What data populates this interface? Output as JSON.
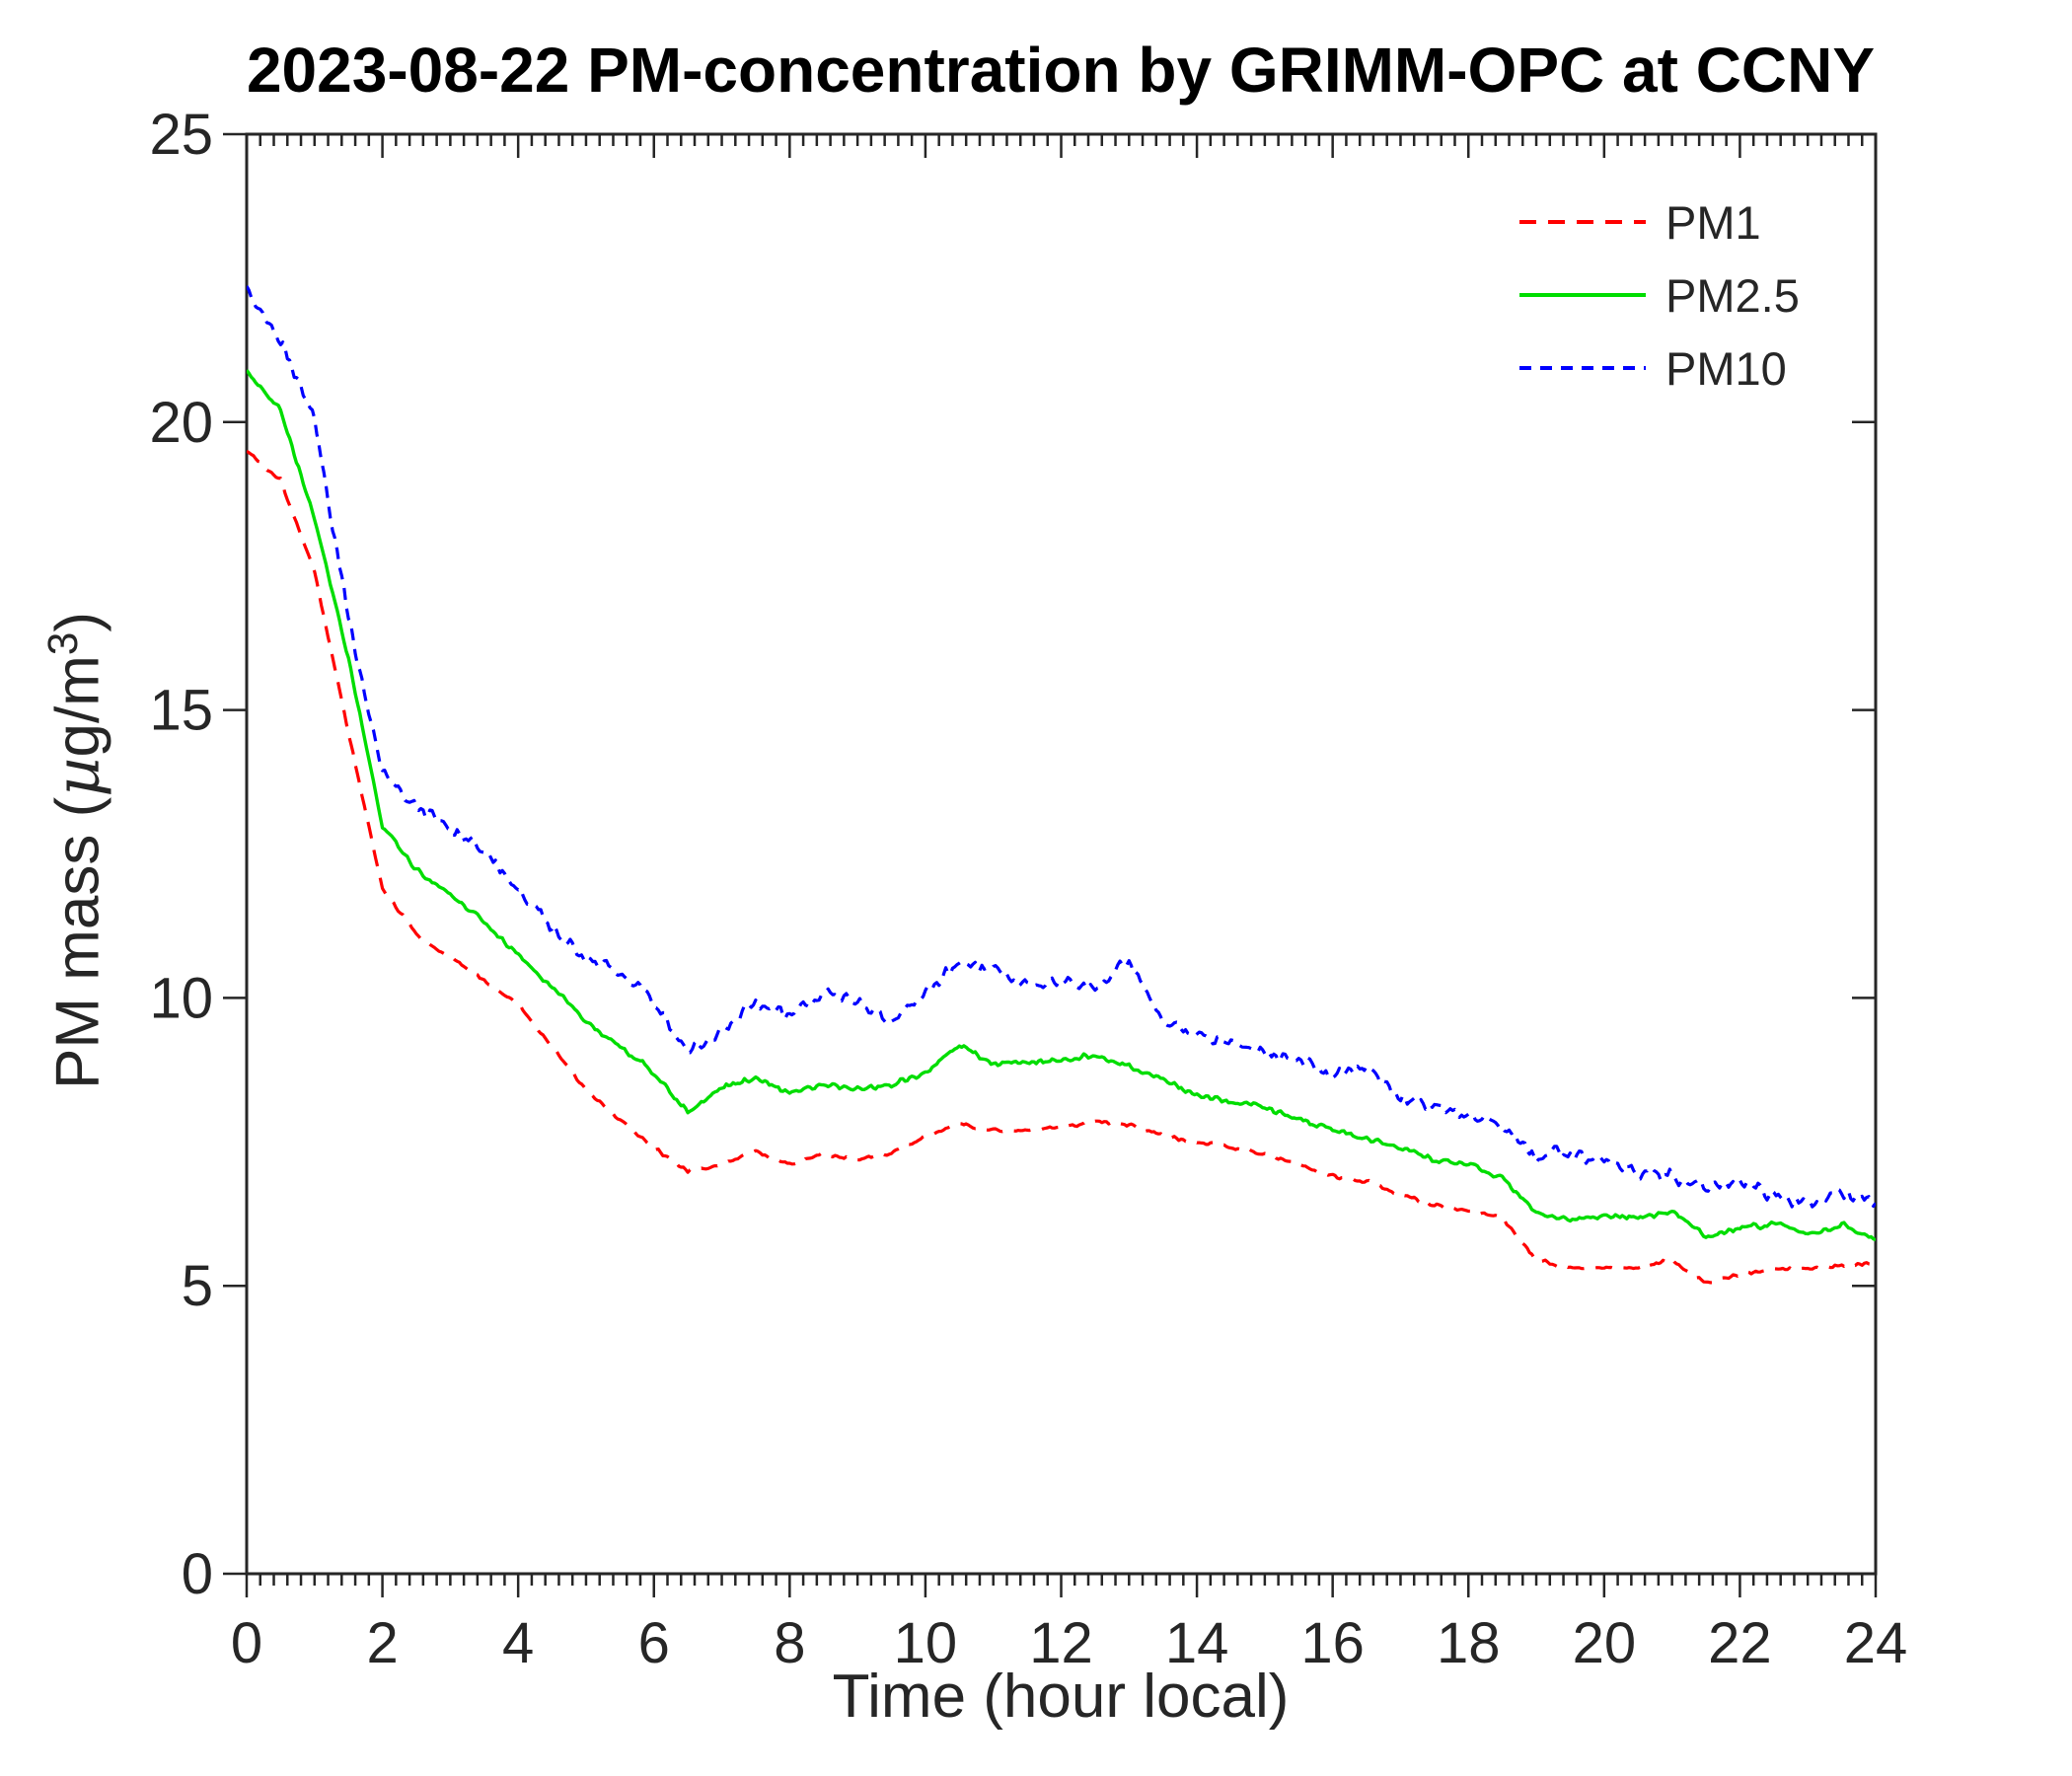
{
  "figure": {
    "background": "#ffffff",
    "axis_color": "#262626",
    "title_color": "#000000"
  },
  "chart_data": {
    "type": "line",
    "title": "2023-08-22 PM-concentration by GRIMM-OPC at CCNY",
    "xlabel": "Time (hour local)",
    "ylabel": "PM mass (µg/m³)",
    "ylabel_parts": {
      "prefix": "PM mass (",
      "mu": "µ",
      "mid": "g/m",
      "sup": "3",
      "suffix": ")"
    },
    "xlim": [
      0,
      24
    ],
    "ylim": [
      0,
      25
    ],
    "x_tick_step": 2,
    "x_minor_tick_step": 0.2,
    "y_tick_step": 5,
    "x_tick_labels": [
      "0",
      "2",
      "4",
      "6",
      "8",
      "10",
      "12",
      "14",
      "16",
      "18",
      "20",
      "22",
      "24"
    ],
    "y_tick_labels": [
      "0",
      "5",
      "10",
      "15",
      "20",
      "25"
    ],
    "grid": false,
    "legend_position": "northeast",
    "x_start": 0,
    "x_step": 0.5,
    "series": [
      {
        "name": "PM1",
        "color": "#ff0000",
        "dash": [
          17,
          12
        ],
        "line_width": 3.2,
        "noise_amp": 0.055,
        "seed": 101,
        "values": [
          19.5,
          19.0,
          17.4,
          14.6,
          11.9,
          11.1,
          10.7,
          10.3,
          9.9,
          9.15,
          8.4,
          7.9,
          7.4,
          7.0,
          7.1,
          7.35,
          7.1,
          7.3,
          7.2,
          7.3,
          7.6,
          7.8,
          7.7,
          7.7,
          7.75,
          7.85,
          7.8,
          7.6,
          7.5,
          7.4,
          7.3,
          7.1,
          6.9,
          6.8,
          6.6,
          6.4,
          6.3,
          6.2,
          5.45,
          5.3,
          5.3,
          5.3,
          5.45,
          5.05,
          5.2,
          5.3,
          5.3,
          5.35,
          5.4
        ]
      },
      {
        "name": "PM2.5",
        "color": "#00dd00",
        "dash": null,
        "line_width": 3.4,
        "noise_amp": 0.075,
        "seed": 202,
        "values": [
          20.9,
          20.2,
          18.3,
          15.9,
          13.0,
          12.2,
          11.8,
          11.3,
          10.75,
          10.2,
          9.6,
          9.15,
          8.7,
          8.0,
          8.45,
          8.6,
          8.35,
          8.5,
          8.4,
          8.5,
          8.7,
          9.2,
          8.85,
          8.9,
          8.9,
          9.0,
          8.8,
          8.6,
          8.3,
          8.2,
          8.1,
          7.9,
          7.7,
          7.55,
          7.4,
          7.2,
          7.1,
          6.9,
          6.25,
          6.15,
          6.2,
          6.2,
          6.3,
          5.85,
          6.0,
          6.1,
          5.9,
          6.05,
          5.8
        ]
      },
      {
        "name": "PM10",
        "color": "#0000ff",
        "dash": [
          12,
          9
        ],
        "line_width": 3.2,
        "noise_amp": 0.17,
        "seed": 303,
        "values": [
          22.3,
          21.4,
          20.0,
          16.6,
          13.9,
          13.3,
          12.9,
          12.55,
          11.9,
          11.2,
          10.7,
          10.5,
          9.9,
          9.05,
          9.4,
          9.9,
          9.7,
          10.1,
          9.9,
          9.6,
          10.1,
          10.6,
          10.5,
          10.2,
          10.3,
          10.15,
          10.65,
          9.6,
          9.35,
          9.2,
          9.05,
          8.9,
          8.65,
          8.85,
          8.25,
          8.1,
          7.95,
          7.8,
          7.25,
          7.3,
          7.2,
          7.0,
          6.9,
          6.7,
          6.8,
          6.55,
          6.45,
          6.65,
          6.45
        ]
      }
    ]
  },
  "legend": {
    "items": [
      {
        "label": "PM1"
      },
      {
        "label": "PM2.5"
      },
      {
        "label": "PM10"
      }
    ]
  }
}
